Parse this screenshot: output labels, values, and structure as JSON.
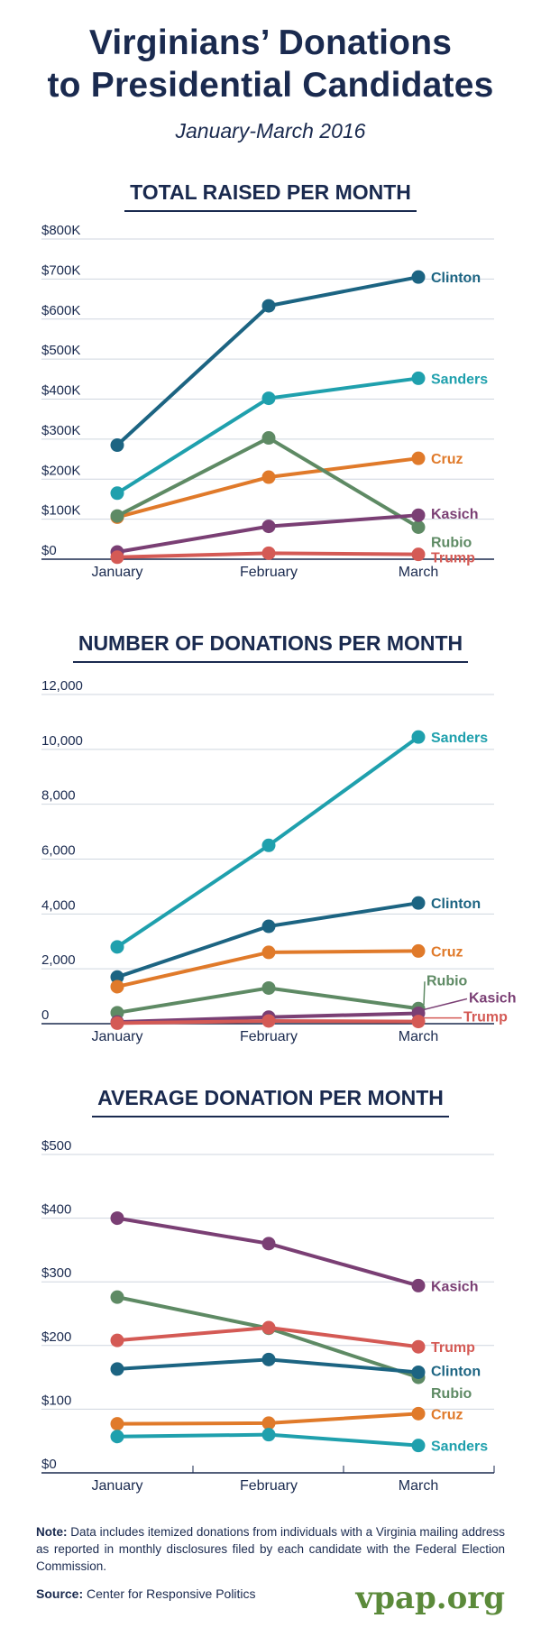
{
  "title_line1": "Virginians’ Donations",
  "title_line2": "to Presidential Candidates",
  "subtitle": "January-March 2016",
  "colors": {
    "Clinton": "#1c6482",
    "Sanders": "#1fa0ad",
    "Cruz": "#e07a2a",
    "Rubio": "#5e8a64",
    "Kasich": "#7a3f74",
    "Trump": "#d45a55",
    "text": "#1a2a4f",
    "grid": "#cfd6df",
    "axis": "#1a2a4f",
    "brand": "#5b8a3a"
  },
  "chart_data": [
    {
      "type": "line",
      "title": "TOTAL RAISED PER MONTH",
      "categories": [
        "January",
        "February",
        "March"
      ],
      "ylim": [
        0,
        800000
      ],
      "yticks": [
        0,
        100000,
        200000,
        300000,
        400000,
        500000,
        600000,
        700000,
        800000
      ],
      "ytick_labels": [
        "$0",
        "$100K",
        "$200K",
        "$300K",
        "$400K",
        "$500K",
        "$600K",
        "$700K",
        "$800K"
      ],
      "series": [
        {
          "name": "Clinton",
          "values": [
            285000,
            633000,
            705000
          ]
        },
        {
          "name": "Sanders",
          "values": [
            165000,
            402000,
            452000
          ]
        },
        {
          "name": "Cruz",
          "values": [
            105000,
            205000,
            252000
          ]
        },
        {
          "name": "Rubio",
          "values": [
            108000,
            303000,
            80000
          ]
        },
        {
          "name": "Kasich",
          "values": [
            18000,
            82000,
            110000
          ]
        },
        {
          "name": "Trump",
          "values": [
            5000,
            15000,
            12000
          ]
        }
      ]
    },
    {
      "type": "line",
      "title": "NUMBER OF DONATIONS PER MONTH",
      "categories": [
        "January",
        "February",
        "March"
      ],
      "ylim": [
        0,
        12000
      ],
      "yticks": [
        0,
        2000,
        4000,
        6000,
        8000,
        10000,
        12000
      ],
      "ytick_labels": [
        "0",
        "2,000",
        "4,000",
        "6,000",
        "8,000",
        "10,000",
        "12,000"
      ],
      "series": [
        {
          "name": "Sanders",
          "values": [
            2800,
            6500,
            10450
          ]
        },
        {
          "name": "Clinton",
          "values": [
            1700,
            3550,
            4400
          ]
        },
        {
          "name": "Cruz",
          "values": [
            1350,
            2600,
            2650
          ]
        },
        {
          "name": "Rubio",
          "values": [
            400,
            1300,
            550
          ]
        },
        {
          "name": "Kasich",
          "values": [
            60,
            240,
            380
          ]
        },
        {
          "name": "Trump",
          "values": [
            20,
            100,
            80
          ]
        }
      ]
    },
    {
      "type": "line",
      "title": "AVERAGE DONATION PER MONTH",
      "categories": [
        "January",
        "February",
        "March"
      ],
      "ylim": [
        0,
        500
      ],
      "yticks": [
        0,
        100,
        200,
        300,
        400,
        500
      ],
      "ytick_labels": [
        "$0",
        "$100",
        "$200",
        "$300",
        "$400",
        "$500"
      ],
      "series": [
        {
          "name": "Kasich",
          "values": [
            400,
            360,
            294
          ]
        },
        {
          "name": "Rubio",
          "values": [
            276,
            227,
            150
          ]
        },
        {
          "name": "Trump",
          "values": [
            208,
            228,
            198
          ]
        },
        {
          "name": "Clinton",
          "values": [
            163,
            178,
            158
          ]
        },
        {
          "name": "Cruz",
          "values": [
            77,
            78,
            93
          ]
        },
        {
          "name": "Sanders",
          "values": [
            57,
            60,
            43
          ]
        }
      ]
    }
  ],
  "note_label": "Note:",
  "note_text": "Data includes itemized donations from individuals with a Virginia mailing address as reported in monthly disclosures filed by each candidate with the Federal Election Commission.",
  "source_label": "Source:",
  "source_text": "Center for Responsive Politics",
  "brand": "vpap.org"
}
